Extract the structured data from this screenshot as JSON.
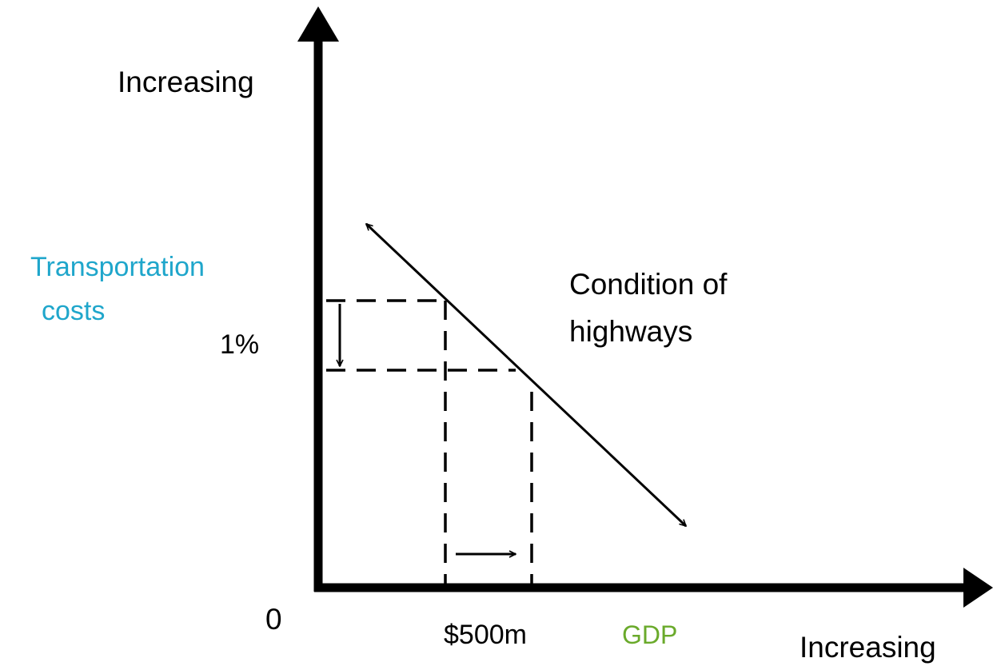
{
  "y_axis": {
    "end_label": "Increasing",
    "title": [
      "Transportation",
      "costs"
    ],
    "tick_label": "1%"
  },
  "x_axis": {
    "end_label": "Increasing",
    "title": "GDP",
    "tick_label": "$500m"
  },
  "origin_label": "0",
  "curve_label": [
    "Condition of",
    "highways"
  ]
}
